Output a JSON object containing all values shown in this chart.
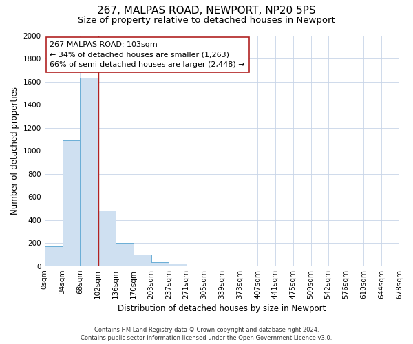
{
  "title": "267, MALPAS ROAD, NEWPORT, NP20 5PS",
  "subtitle": "Size of property relative to detached houses in Newport",
  "xlabel": "Distribution of detached houses by size in Newport",
  "ylabel": "Number of detached properties",
  "bin_labels": [
    "0sqm",
    "34sqm",
    "68sqm",
    "102sqm",
    "136sqm",
    "170sqm",
    "203sqm",
    "237sqm",
    "271sqm",
    "305sqm",
    "339sqm",
    "373sqm",
    "407sqm",
    "441sqm",
    "475sqm",
    "509sqm",
    "542sqm",
    "576sqm",
    "610sqm",
    "644sqm",
    "678sqm"
  ],
  "bar_values": [
    170,
    1090,
    1635,
    480,
    200,
    100,
    35,
    20,
    0,
    0,
    0,
    0,
    0,
    0,
    0,
    0,
    0,
    0,
    0,
    0
  ],
  "bar_left_edges": [
    0,
    34,
    68,
    102,
    136,
    170,
    203,
    237,
    271,
    305,
    339,
    373,
    407,
    441,
    475,
    509,
    542,
    576,
    610,
    644
  ],
  "bin_width": 34,
  "bar_color": "#cfe0f1",
  "bar_edge_color": "#6baed6",
  "reference_line_x": 103,
  "reference_line_color": "#b22222",
  "ylim": [
    0,
    2000
  ],
  "yticks": [
    0,
    200,
    400,
    600,
    800,
    1000,
    1200,
    1400,
    1600,
    1800,
    2000
  ],
  "annotation_title": "267 MALPAS ROAD: 103sqm",
  "annotation_line1": "← 34% of detached houses are smaller (1,263)",
  "annotation_line2": "66% of semi-detached houses are larger (2,448) →",
  "footer_line1": "Contains HM Land Registry data © Crown copyright and database right 2024.",
  "footer_line2": "Contains public sector information licensed under the Open Government Licence v3.0.",
  "background_color": "#ffffff",
  "grid_color": "#c8d4e8",
  "title_fontsize": 11,
  "subtitle_fontsize": 9.5,
  "axis_label_fontsize": 8.5,
  "tick_fontsize": 7.5,
  "annotation_fontsize": 8,
  "footer_fontsize": 6
}
